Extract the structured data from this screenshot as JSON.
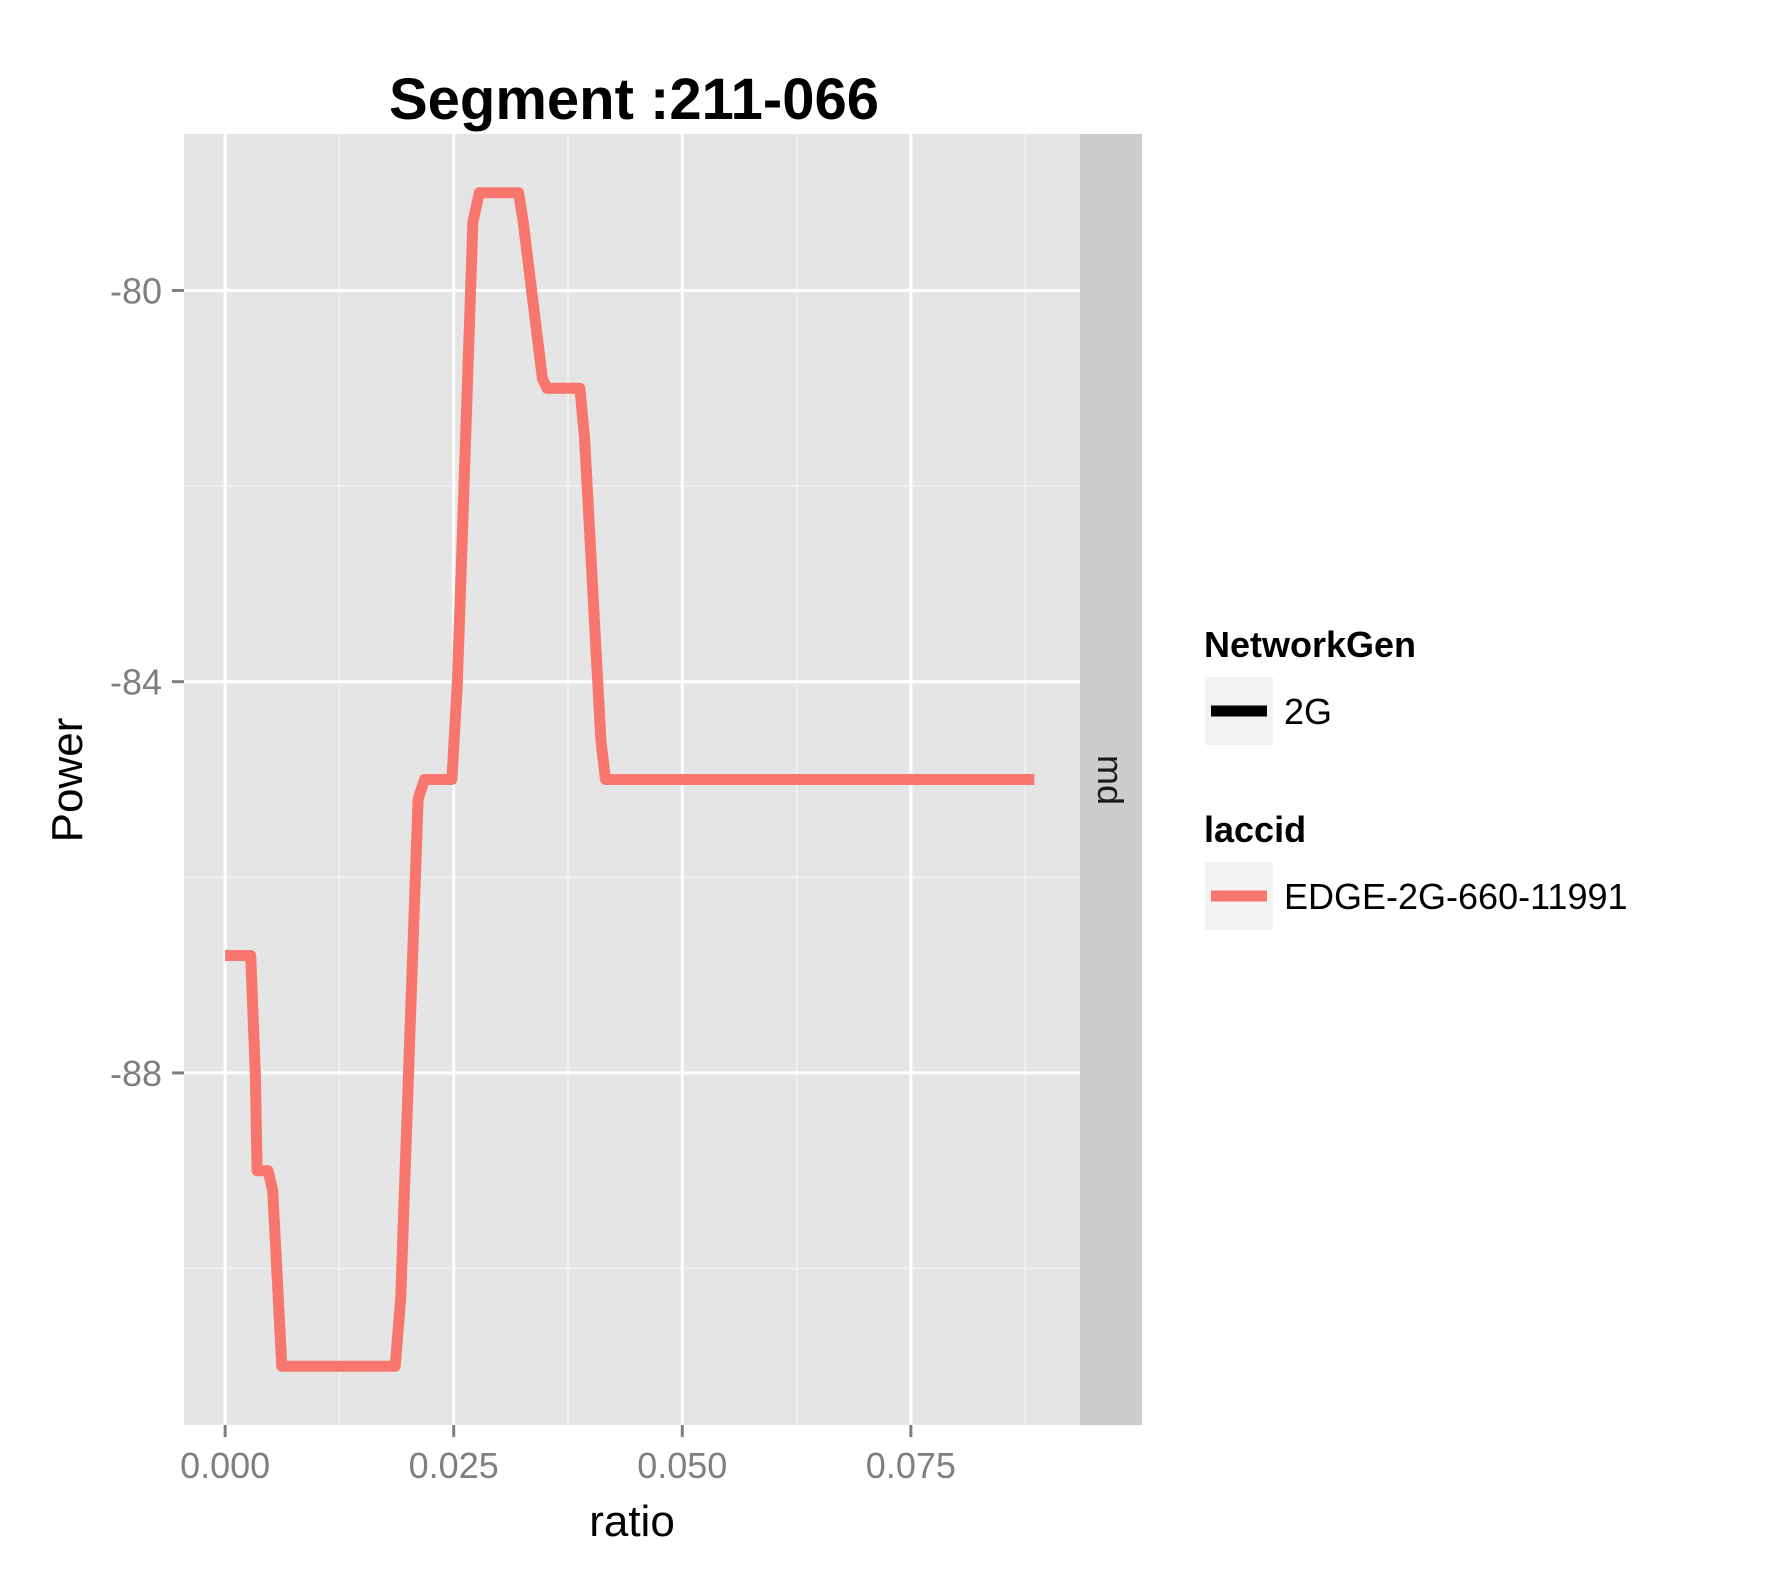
{
  "chart_data": {
    "type": "line",
    "title": "Segment :211-066",
    "xlabel": "ratio",
    "ylabel": "Power",
    "xlim": [
      -0.0045,
      0.0935
    ],
    "ylim": [
      -91.6,
      -78.4
    ],
    "x_ticks": [
      0.0,
      0.025,
      0.05,
      0.075
    ],
    "x_tick_labels": [
      "0.000",
      "0.025",
      "0.050",
      "0.075"
    ],
    "y_ticks": [
      -80,
      -84,
      -88
    ],
    "y_tick_labels": [
      "-80",
      "-84",
      "-88"
    ],
    "grid": true,
    "facet_strip": "md",
    "legend_position": "right",
    "series": [
      {
        "name": "EDGE-2G-660-11991",
        "color": "#F8766D",
        "x": [
          0.0,
          0.0028,
          0.0033,
          0.0035,
          0.0047,
          0.0052,
          0.0062,
          0.0186,
          0.0192,
          0.0211,
          0.0218,
          0.0248,
          0.0254,
          0.0271,
          0.0278,
          0.0321,
          0.0326,
          0.0347,
          0.0352,
          0.0388,
          0.0393,
          0.0411,
          0.0416,
          0.0445,
          0.0885
        ],
        "y": [
          -86.8,
          -86.8,
          -88.0,
          -89.0,
          -89.0,
          -89.2,
          -91.0,
          -91.0,
          -90.3,
          -85.2,
          -85.0,
          -85.0,
          -84.0,
          -79.3,
          -79.0,
          -79.0,
          -79.3,
          -80.9,
          -81.0,
          -81.0,
          -81.5,
          -84.6,
          -85.0,
          -85.0,
          -85.0
        ]
      }
    ],
    "legend": [
      {
        "title": "NetworkGen",
        "items": [
          {
            "label": "2G",
            "color": "#000000"
          }
        ]
      },
      {
        "title": "laccid",
        "items": [
          {
            "label": "EDGE-2G-660-11991",
            "color": "#F8766D"
          }
        ]
      }
    ]
  }
}
